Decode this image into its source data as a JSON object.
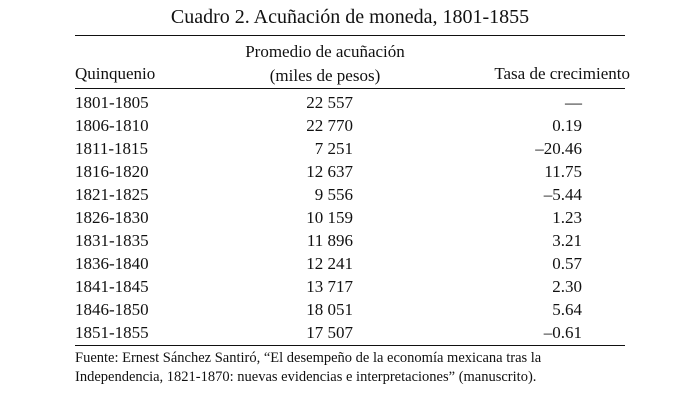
{
  "title": "Cuadro 2. Acuñación de moneda, 1801-1855",
  "headers": {
    "period": "Quinquenio",
    "average_line1": "Promedio de acuñación",
    "average_line2": "(miles de pesos)",
    "growth": "Tasa de crecimiento"
  },
  "rows": [
    {
      "period": "1801-1805",
      "average": "22 557",
      "growth": "—"
    },
    {
      "period": "1806-1810",
      "average": "22 770",
      "growth": "0.19"
    },
    {
      "period": "1811-1815",
      "average": "7 251",
      "growth": "–20.46"
    },
    {
      "period": "1816-1820",
      "average": "12 637",
      "growth": "11.75"
    },
    {
      "period": "1821-1825",
      "average": "9 556",
      "growth": "–5.44"
    },
    {
      "period": "1826-1830",
      "average": "10 159",
      "growth": "1.23"
    },
    {
      "period": "1831-1835",
      "average": "11 896",
      "growth": "3.21"
    },
    {
      "period": "1836-1840",
      "average": "12 241",
      "growth": "0.57"
    },
    {
      "period": "1841-1845",
      "average": "13 717",
      "growth": "2.30"
    },
    {
      "period": "1846-1850",
      "average": "18 051",
      "growth": "5.64"
    },
    {
      "period": "1851-1855",
      "average": "17 507",
      "growth": "–0.61"
    }
  ],
  "source": {
    "line1": "Fuente: Ernest Sánchez Santiró, “El desempeño de la economía mexicana tras la",
    "line2": "Independencia, 1821-1870: nuevas evidencias e interpretaciones” (manuscrito)."
  }
}
